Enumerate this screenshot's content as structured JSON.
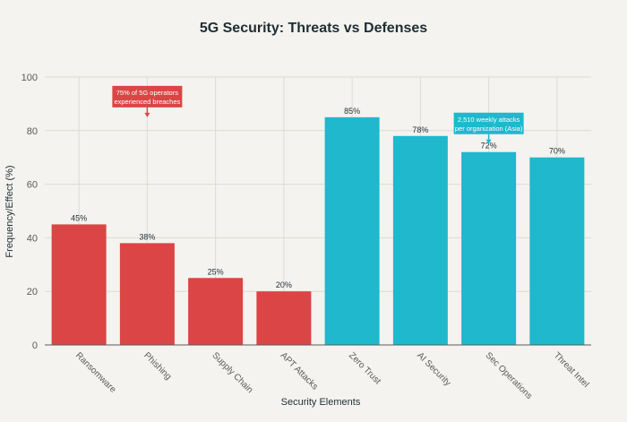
{
  "chart_data": {
    "type": "bar",
    "title": "5G Security: Threats vs Defenses",
    "xlabel": "Security Elements",
    "ylabel": "Frequency/Effect (%)",
    "ylim": [
      0,
      100
    ],
    "yticks": [
      0,
      20,
      40,
      60,
      80,
      100
    ],
    "grid": true,
    "categories": [
      "Ransomware",
      "Phishing",
      "Supply Chain",
      "APT Attacks",
      "Zero Trust",
      "AI Security",
      "Sec Operations",
      "Threat Intel"
    ],
    "values": [
      45,
      38,
      25,
      20,
      85,
      78,
      72,
      70
    ],
    "data_labels": [
      "45%",
      "38%",
      "25%",
      "20%",
      "85%",
      "78%",
      "72%",
      "70%"
    ],
    "groups": [
      {
        "name": "Threats",
        "color": "#db4545",
        "categories": [
          "Ransomware",
          "Phishing",
          "Supply Chain",
          "APT Attacks"
        ]
      },
      {
        "name": "Defenses",
        "color": "#1fb8cd",
        "categories": [
          "Zero Trust",
          "AI Security",
          "Sec Operations",
          "Threat Intel"
        ]
      }
    ],
    "annotations": [
      {
        "category": "Phishing",
        "y": 85,
        "lines": [
          "75% of 5G operators",
          "experienced breaches"
        ],
        "color": "#db4545"
      },
      {
        "category": "Sec Operations",
        "y": 75,
        "lines": [
          "2,510 weekly attacks",
          "per organization (Asia)"
        ],
        "color": "#1fb8cd"
      }
    ]
  }
}
